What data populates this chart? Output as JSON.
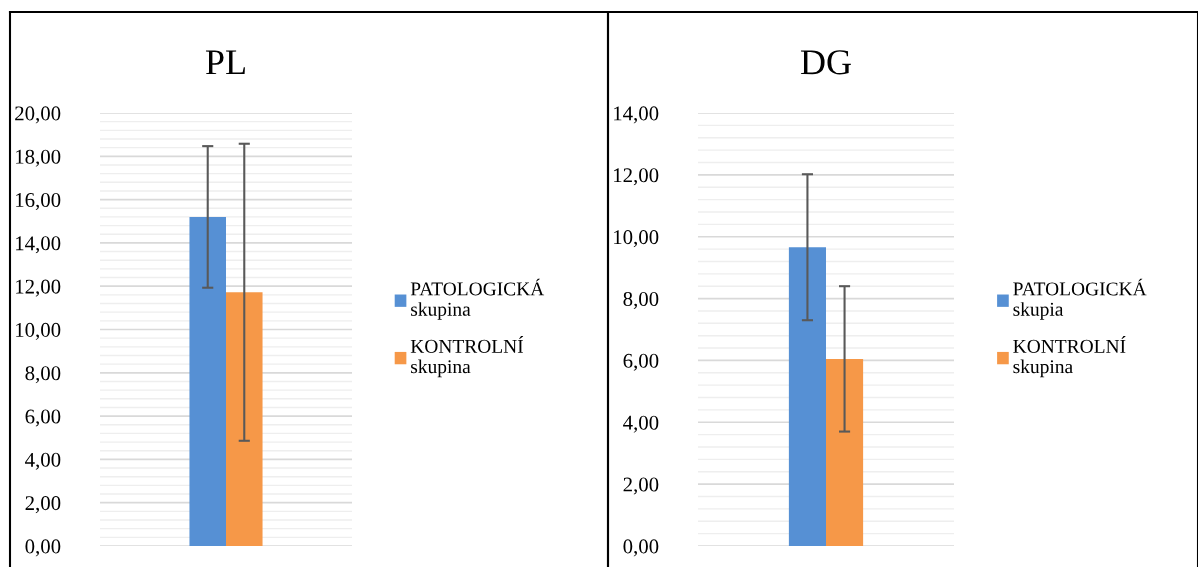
{
  "chart_data": [
    {
      "type": "bar",
      "title": "PL",
      "categories": [
        null
      ],
      "ylim": [
        0,
        20
      ],
      "yticks": [
        {
          "value": 0,
          "label": "0,00"
        },
        {
          "value": 2,
          "label": "2,00"
        },
        {
          "value": 4,
          "label": "4,00"
        },
        {
          "value": 6,
          "label": "6,00"
        },
        {
          "value": 8,
          "label": "8,00"
        },
        {
          "value": 10,
          "label": "10,00"
        },
        {
          "value": 12,
          "label": "12,00"
        },
        {
          "value": 14,
          "label": "14,00"
        },
        {
          "value": 16,
          "label": "16,00"
        },
        {
          "value": 18,
          "label": "18,00"
        },
        {
          "value": 20,
          "label": "20,00"
        }
      ],
      "grid": "y",
      "legend": "right",
      "series": [
        {
          "name": "PATOLOGICKÁ\nskupina",
          "color": "#5690d4",
          "values": [
            15.2
          ],
          "errors": [
            3.27
          ]
        },
        {
          "name": "KONTROLNÍ\nskupina",
          "color": "#f69848",
          "values": [
            11.72
          ],
          "errors": [
            6.86
          ]
        }
      ]
    },
    {
      "type": "bar",
      "title": "DG",
      "categories": [
        null
      ],
      "ylim": [
        0,
        14
      ],
      "yticks": [
        {
          "value": 0,
          "label": "0,00"
        },
        {
          "value": 2,
          "label": "2,00"
        },
        {
          "value": 4,
          "label": "4,00"
        },
        {
          "value": 6,
          "label": "6,00"
        },
        {
          "value": 8,
          "label": "8,00"
        },
        {
          "value": 10,
          "label": "10,00"
        },
        {
          "value": 12,
          "label": "12,00"
        },
        {
          "value": 14,
          "label": "14,00"
        }
      ],
      "grid": "y",
      "legend": "right",
      "series": [
        {
          "name": "PATOLOGICKÁ\nskupia",
          "color": "#5690d4",
          "values": [
            9.66
          ],
          "errors": [
            2.36
          ]
        },
        {
          "name": "KONTROLNÍ\nskupina",
          "color": "#f69848",
          "values": [
            6.05
          ],
          "errors": [
            2.35
          ]
        }
      ]
    }
  ]
}
